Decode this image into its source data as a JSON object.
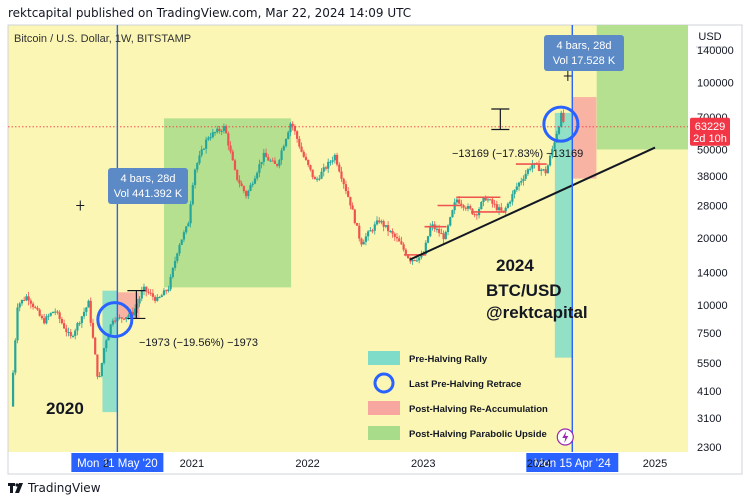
{
  "header": {
    "text": "rektcapital published on TradingView.com, Mar 22, 2024 14:09 UTC"
  },
  "footer": {
    "brand": "TradingView"
  },
  "colors": {
    "background": "#fbf6b4",
    "bull_candle": "#26a69a",
    "bear_candle": "#ef5350",
    "pre_halving_rally": "#7fdcc8",
    "post_halving_reaccumulation": "#f7a7a0",
    "post_halving_parabolic_upside": "#a8dc8a",
    "halving_line": "#2962ff",
    "price_badge": "#f23645"
  },
  "chart_data": {
    "type": "candlestick",
    "title": "Bitcoin / U.S. Dollar, 1W, BITSTAMP",
    "y_scale": "log",
    "ylim": [
      2300,
      140000
    ],
    "y_ticks": [
      2300,
      3100,
      4100,
      5500,
      7500,
      10000,
      14000,
      20000,
      28000,
      38000,
      50000,
      70000,
      100000,
      140000
    ],
    "y_tick_labels": [
      "2300",
      "3100",
      "4100",
      "5500",
      "7500",
      "10000",
      "14000",
      "20000",
      "28000",
      "38000",
      "50000",
      "70000",
      "100000",
      "140000"
    ],
    "currency_label": "USD",
    "x_ticks": [
      {
        "label": "2021",
        "date": "2021-01-01"
      },
      {
        "label": "2022",
        "date": "2022-01-01"
      },
      {
        "label": "2023",
        "date": "2023-01-01"
      },
      {
        "label": "2024",
        "date": "2024-01-01"
      },
      {
        "label": "2025",
        "date": "2025-01-01"
      }
    ],
    "x_tick_partial_label": "2",
    "x_range": [
      "2019-06-01",
      "2025-04-15"
    ],
    "current_price": {
      "label": "63229",
      "countdown": "2d 10h",
      "value": 63229
    },
    "halving_lines": [
      {
        "date": "2020-05-11",
        "label": "Mon 11 May '20"
      },
      {
        "date": "2024-04-15",
        "label": "Mon 15 Apr '24"
      }
    ],
    "price_path": [
      [
        "2019-06-10",
        3500
      ],
      [
        "2019-07-01",
        10000
      ],
      [
        "2019-08-01",
        11000
      ],
      [
        "2019-09-20",
        8400
      ],
      [
        "2019-10-26",
        9500
      ],
      [
        "2019-12-15",
        7100
      ],
      [
        "2020-02-10",
        10200
      ],
      [
        "2020-03-13",
        4400
      ],
      [
        "2020-04-01",
        6700
      ],
      [
        "2020-04-28",
        8800
      ],
      [
        "2020-05-11",
        8600
      ],
      [
        "2020-06-30",
        9200
      ],
      [
        "2020-08-01",
        11800
      ],
      [
        "2020-09-15",
        10500
      ],
      [
        "2020-10-20",
        12000
      ],
      [
        "2020-11-20",
        18500
      ],
      [
        "2020-12-20",
        23000
      ],
      [
        "2021-01-08",
        40000
      ],
      [
        "2021-02-20",
        57000
      ],
      [
        "2021-04-14",
        63000
      ],
      [
        "2021-05-20",
        38000
      ],
      [
        "2021-06-22",
        31000
      ],
      [
        "2021-08-15",
        47000
      ],
      [
        "2021-09-25",
        42000
      ],
      [
        "2021-11-10",
        67000
      ],
      [
        "2021-12-15",
        48000
      ],
      [
        "2022-01-25",
        36000
      ],
      [
        "2022-03-28",
        47000
      ],
      [
        "2022-05-15",
        29000
      ],
      [
        "2022-06-18",
        19000
      ],
      [
        "2022-08-15",
        24000
      ],
      [
        "2022-10-15",
        19300
      ],
      [
        "2022-11-20",
        16000
      ],
      [
        "2022-12-31",
        16500
      ],
      [
        "2023-01-25",
        23000
      ],
      [
        "2023-03-10",
        20000
      ],
      [
        "2023-04-15",
        30000
      ],
      [
        "2023-06-15",
        25500
      ],
      [
        "2023-07-15",
        30500
      ],
      [
        "2023-09-10",
        25800
      ],
      [
        "2023-10-25",
        34500
      ],
      [
        "2023-12-10",
        43000
      ],
      [
        "2024-01-23",
        39500
      ],
      [
        "2024-02-15",
        52000
      ],
      [
        "2024-03-12",
        72000
      ],
      [
        "2024-03-22",
        63229
      ]
    ],
    "boxes": [
      {
        "type": "pre_halving_rally",
        "from": "2020-03-25",
        "to": "2020-05-11",
        "low": 3300,
        "high": 11600
      },
      {
        "type": "post_halving_reaccumulation",
        "from": "2020-05-11",
        "to": "2020-07-20",
        "low": 8700,
        "high": 11400
      },
      {
        "type": "post_halving_parabolic_upside",
        "from": "2020-10-05",
        "to": "2021-11-10",
        "low": 12000,
        "high": 69000
      },
      {
        "type": "pre_halving_rally",
        "from": "2024-02-20",
        "to": "2024-04-15",
        "low": 5800,
        "high": 73000
      },
      {
        "type": "post_halving_reaccumulation",
        "from": "2024-04-15",
        "to": "2024-06-30",
        "low": 37000,
        "high": 86000
      },
      {
        "type": "post_halving_parabolic_upside",
        "from": "2024-07-01",
        "to": "2025-04-15",
        "low": 50000,
        "high": 210000
      }
    ],
    "trendline": {
      "from": [
        "2022-11-20",
        16000
      ],
      "to": [
        "2025-01-01",
        51000
      ]
    },
    "range_levels": [
      {
        "from": "2022-11-01",
        "to": "2023-01-10",
        "value": 16800
      },
      {
        "from": "2023-01-05",
        "to": "2023-03-15",
        "value": 22500
      },
      {
        "from": "2023-02-15",
        "to": "2023-05-01",
        "value": 28000
      },
      {
        "from": "2023-04-15",
        "to": "2023-09-01",
        "value": 30500
      },
      {
        "from": "2023-06-01",
        "to": "2023-09-20",
        "value": 26200
      },
      {
        "from": "2023-10-20",
        "to": "2024-01-25",
        "value": 43000
      }
    ],
    "markers": [
      {
        "date": "2020-05-03",
        "value": 8600,
        "type": "circle"
      },
      {
        "date": "2024-03-10",
        "value": 65000,
        "type": "circle"
      }
    ],
    "volume_markers": [
      {
        "date": "2020-01-15",
        "value": 28000
      },
      {
        "date": "2024-04-01",
        "value": 107000
      }
    ],
    "retrace_brackets": [
      {
        "date": "2020-07-10",
        "high": 11600,
        "low": 8700
      },
      {
        "date": "2023-09-01",
        "high": 76000,
        "low": 61500
      }
    ],
    "annotations": {
      "retrace_2020": "−1973 (−19.56%) −1973",
      "retrace_2024": "−13169 (−17.83%) −13169",
      "bars_2020": {
        "line1": "4 bars, 28d",
        "line2": "Vol 441.392 K"
      },
      "bars_2024": {
        "line1": "4 bars, 28d",
        "line2": "Vol 17.528 K"
      },
      "year_2020": "2020",
      "year_2024": "2024",
      "pair": "BTC/USD",
      "handle": "@rektcapital"
    },
    "legend": [
      {
        "label": "Pre-Halving Rally",
        "kind": "pre_halving_rally"
      },
      {
        "label": "Last Pre-Halving Retrace",
        "kind": "circle"
      },
      {
        "label": "Post-Halving Re-Accumulation",
        "kind": "post_halving_reaccumulation"
      },
      {
        "label": "Post-Halving Parabolic Upside",
        "kind": "post_halving_parabolic_upside"
      }
    ]
  }
}
